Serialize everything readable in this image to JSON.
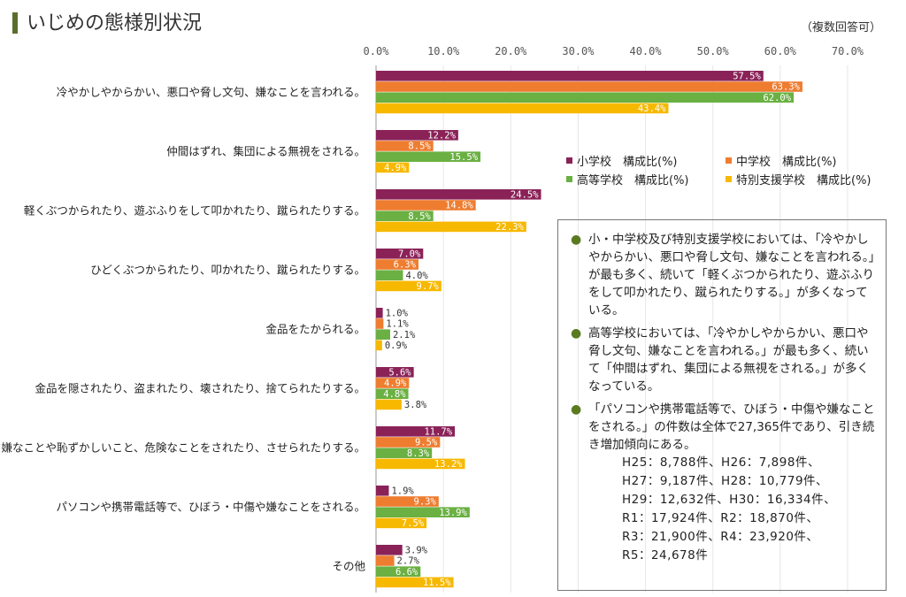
{
  "page": {
    "title": "いじめの態様別状況",
    "note": "（複数回答可）"
  },
  "colors": {
    "elementary": "#8a2258",
    "junior_high": "#ee7d30",
    "high_school": "#6ab043",
    "special_support": "#f7b800",
    "title_accent": "#5a6e2a"
  },
  "chart_data": {
    "type": "bar",
    "orientation": "horizontal",
    "xlim": [
      0,
      70
    ],
    "x_ticks": [
      "0.0%",
      "10.0%",
      "20.0%",
      "30.0%",
      "40.0%",
      "50.0%",
      "60.0%",
      "70.0%"
    ],
    "legend_position": "right",
    "categories": [
      "冷やかしやからかい、悪口や脅し文句、嫌なことを言われる。",
      "仲間はずれ、集団による無視をされる。",
      "軽くぶつかられたり、遊ぶふりをして叩かれたり、蹴られたりする。",
      "ひどくぶつかられたり、叩かれたり、蹴られたりする。",
      "金品をたかられる。",
      "金品を隠されたり、盗まれたり、壊されたり、捨てられたりする。",
      "嫌なことや恥ずかしいこと、危険なことをされたり、させられたりする。",
      "パソコンや携帯電話等で、ひぼう・中傷や嫌なことをされる。",
      "その他"
    ],
    "series": [
      {
        "name": "小学校　構成比(%)",
        "color": "#8a2258",
        "values": [
          57.5,
          12.2,
          24.5,
          7.0,
          1.0,
          5.6,
          11.7,
          1.9,
          3.9
        ],
        "labels": [
          "57.5%",
          "12.2%",
          "24.5%",
          "7.0%",
          "1.0%",
          "5.6%",
          "11.7%",
          "1.9%",
          "3.9%"
        ]
      },
      {
        "name": "中学校　構成比(%)",
        "color": "#ee7d30",
        "values": [
          63.3,
          8.5,
          14.8,
          6.3,
          1.1,
          4.9,
          9.5,
          9.3,
          2.7
        ],
        "labels": [
          "63.3%",
          "8.5%",
          "14.8%",
          "6.3%",
          "1.1%",
          "4.9%",
          "9.5%",
          "9.3%",
          "2.7%"
        ]
      },
      {
        "name": "高等学校　構成比(%)",
        "color": "#6ab043",
        "values": [
          62.0,
          15.5,
          8.5,
          4.0,
          2.1,
          4.8,
          8.3,
          13.9,
          6.6
        ],
        "labels": [
          "62.0%",
          "15.5%",
          "8.5%",
          "4.0%",
          "2.1%",
          "4.8%",
          "8.3%",
          "13.9%",
          "6.6%"
        ]
      },
      {
        "name": "特別支援学校　構成比(%)",
        "color": "#f7b800",
        "values": [
          43.4,
          4.9,
          22.3,
          9.7,
          0.9,
          3.8,
          13.2,
          7.5,
          11.5
        ],
        "labels": [
          "43.4%",
          "4.9%",
          "22.3%",
          "9.7%",
          "0.9%",
          "3.8%",
          "13.2%",
          "7.5%",
          "11.5%"
        ]
      }
    ]
  },
  "summary": {
    "items": [
      {
        "bullet": "●",
        "text": "小・中学校及び特別支援学校においては、「冷やかしやからかい、悪口や脅し文句、嫌なことを言われる。」が最も多く、続いて「軽くぶつかられたり、遊ぶふりをして叩かれたり、蹴られたりする。」が多くなっている。"
      },
      {
        "bullet": "●",
        "text": "高等学校においては、「冷やかしやからかい、悪口や脅し文句、嫌なことを言われる。」が最も多く、続いて「仲間はずれ、集団による無視をされる。」が多くなっている。"
      },
      {
        "bullet": "●",
        "text": "「パソコンや携帯電話等で、ひぼう・中傷や嫌なことをされる。」の件数は全体で27,365件であり、引き続き増加傾向にある。"
      }
    ],
    "history": [
      "H25：8,788件、H26：7,898件、",
      "H27：9,187件、H28：10,779件、",
      "H29：12,632件、H30：16,334件、",
      "R1：17,924件、R2：18,870件、",
      "R3：21,900件、R4：23,920件、",
      "R5：24,678件"
    ]
  }
}
